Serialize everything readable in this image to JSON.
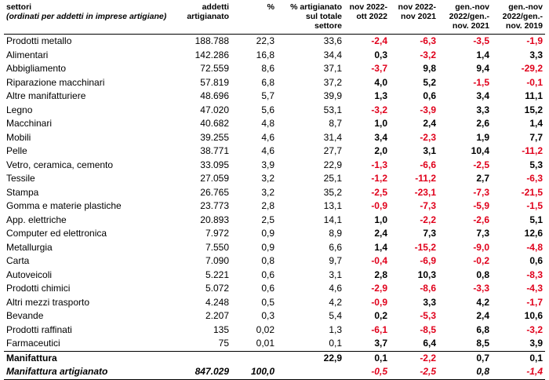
{
  "headers": {
    "sector": "settori",
    "sector_sub": "(ordinati per addetti in imprese artigiane)",
    "addetti": "addetti artigianato",
    "pct": "%",
    "pct_tot": "% artigianato sul totale settore",
    "nov_ott": "nov 2022-ott 2022",
    "nov_nov": "nov 2022-nov 2021",
    "gen_2021": "gen.-nov 2022/gen.-nov. 2021",
    "gen_2019": "gen.-nov 2022/gen.-nov. 2019"
  },
  "rows": [
    {
      "name": "Prodotti metallo",
      "addetti": "188.788",
      "pct": "22,3",
      "pct_tot": "33,6",
      "v1": "-2,4",
      "v2": "-6,3",
      "v3": "-3,5",
      "v4": "-1,9"
    },
    {
      "name": "Alimentari",
      "addetti": "142.286",
      "pct": "16,8",
      "pct_tot": "34,4",
      "v1": "0,3",
      "v2": "-3,2",
      "v3": "1,4",
      "v4": "3,3"
    },
    {
      "name": "Abbigliamento",
      "addetti": "72.559",
      "pct": "8,6",
      "pct_tot": "37,1",
      "v1": "-3,7",
      "v2": "9,8",
      "v3": "9,4",
      "v4": "-29,2"
    },
    {
      "name": "Riparazione macchinari",
      "addetti": "57.819",
      "pct": "6,8",
      "pct_tot": "37,2",
      "v1": "4,0",
      "v2": "5,2",
      "v3": "-1,5",
      "v4": "-0,1"
    },
    {
      "name": "Altre manifatturiere",
      "addetti": "48.696",
      "pct": "5,7",
      "pct_tot": "39,9",
      "v1": "1,3",
      "v2": "0,6",
      "v3": "3,4",
      "v4": "11,1"
    },
    {
      "name": "Legno",
      "addetti": "47.020",
      "pct": "5,6",
      "pct_tot": "53,1",
      "v1": "-3,2",
      "v2": "-3,9",
      "v3": "3,3",
      "v4": "15,2"
    },
    {
      "name": "Macchinari",
      "addetti": "40.682",
      "pct": "4,8",
      "pct_tot": "8,7",
      "v1": "1,0",
      "v2": "2,4",
      "v3": "2,6",
      "v4": "1,4"
    },
    {
      "name": "Mobili",
      "addetti": "39.255",
      "pct": "4,6",
      "pct_tot": "31,4",
      "v1": "3,4",
      "v2": "-2,3",
      "v3": "1,9",
      "v4": "7,7"
    },
    {
      "name": "Pelle",
      "addetti": "38.771",
      "pct": "4,6",
      "pct_tot": "27,7",
      "v1": "2,0",
      "v2": "3,1",
      "v3": "10,4",
      "v4": "-11,2"
    },
    {
      "name": "Vetro, ceramica, cemento",
      "addetti": "33.095",
      "pct": "3,9",
      "pct_tot": "22,9",
      "v1": "-1,3",
      "v2": "-6,6",
      "v3": "-2,5",
      "v4": "5,3"
    },
    {
      "name": "Tessile",
      "addetti": "27.059",
      "pct": "3,2",
      "pct_tot": "25,1",
      "v1": "-1,2",
      "v2": "-11,2",
      "v3": "2,7",
      "v4": "-6,3"
    },
    {
      "name": "Stampa",
      "addetti": "26.765",
      "pct": "3,2",
      "pct_tot": "35,2",
      "v1": "-2,5",
      "v2": "-23,1",
      "v3": "-7,3",
      "v4": "-21,5"
    },
    {
      "name": "Gomma e materie plastiche",
      "addetti": "23.773",
      "pct": "2,8",
      "pct_tot": "13,1",
      "v1": "-0,9",
      "v2": "-7,3",
      "v3": "-5,9",
      "v4": "-1,5"
    },
    {
      "name": "App. elettriche",
      "addetti": "20.893",
      "pct": "2,5",
      "pct_tot": "14,1",
      "v1": "1,0",
      "v2": "-2,2",
      "v3": "-2,6",
      "v4": "5,1"
    },
    {
      "name": "Computer ed elettronica",
      "addetti": "7.972",
      "pct": "0,9",
      "pct_tot": "8,9",
      "v1": "2,4",
      "v2": "7,3",
      "v3": "7,3",
      "v4": "12,6"
    },
    {
      "name": "Metallurgia",
      "addetti": "7.550",
      "pct": "0,9",
      "pct_tot": "6,6",
      "v1": "1,4",
      "v2": "-15,2",
      "v3": "-9,0",
      "v4": "-4,8"
    },
    {
      "name": "Carta",
      "addetti": "7.090",
      "pct": "0,8",
      "pct_tot": "9,7",
      "v1": "-0,4",
      "v2": "-6,9",
      "v3": "-0,2",
      "v4": "0,6"
    },
    {
      "name": "Autoveicoli",
      "addetti": "5.221",
      "pct": "0,6",
      "pct_tot": "3,1",
      "v1": "2,8",
      "v2": "10,3",
      "v3": "0,8",
      "v4": "-8,3"
    },
    {
      "name": "Prodotti chimici",
      "addetti": "5.072",
      "pct": "0,6",
      "pct_tot": "4,6",
      "v1": "-2,9",
      "v2": "-8,6",
      "v3": "-3,3",
      "v4": "-4,3"
    },
    {
      "name": "Altri mezzi trasporto",
      "addetti": "4.248",
      "pct": "0,5",
      "pct_tot": "4,2",
      "v1": "-0,9",
      "v2": "3,3",
      "v3": "4,2",
      "v4": "-1,7"
    },
    {
      "name": "Bevande",
      "addetti": "2.207",
      "pct": "0,3",
      "pct_tot": "5,4",
      "v1": "0,2",
      "v2": "-5,3",
      "v3": "2,4",
      "v4": "10,6"
    },
    {
      "name": "Prodotti raffinati",
      "addetti": "135",
      "pct": "0,02",
      "pct_tot": "1,3",
      "v1": "-6,1",
      "v2": "-8,5",
      "v3": "6,8",
      "v4": "-3,2"
    },
    {
      "name": "Farmaceutici",
      "addetti": "75",
      "pct": "0,01",
      "pct_tot": "0,1",
      "v1": "3,7",
      "v2": "6,4",
      "v3": "8,5",
      "v4": "3,9"
    }
  ],
  "totals": [
    {
      "name": "Manifattura",
      "addetti": "",
      "pct": "",
      "pct_tot": "22,9",
      "v1": "0,1",
      "v2": "-2,2",
      "v3": "0,7",
      "v4": "0,1"
    },
    {
      "name": "Manifattura artigianato",
      "addetti": "847.029",
      "pct": "100,0",
      "pct_tot": "",
      "v1": "-0,5",
      "v2": "-2,5",
      "v3": "0,8",
      "v4": "-1,4"
    }
  ],
  "colors": {
    "negative": "#e0001b",
    "text": "#000000"
  }
}
